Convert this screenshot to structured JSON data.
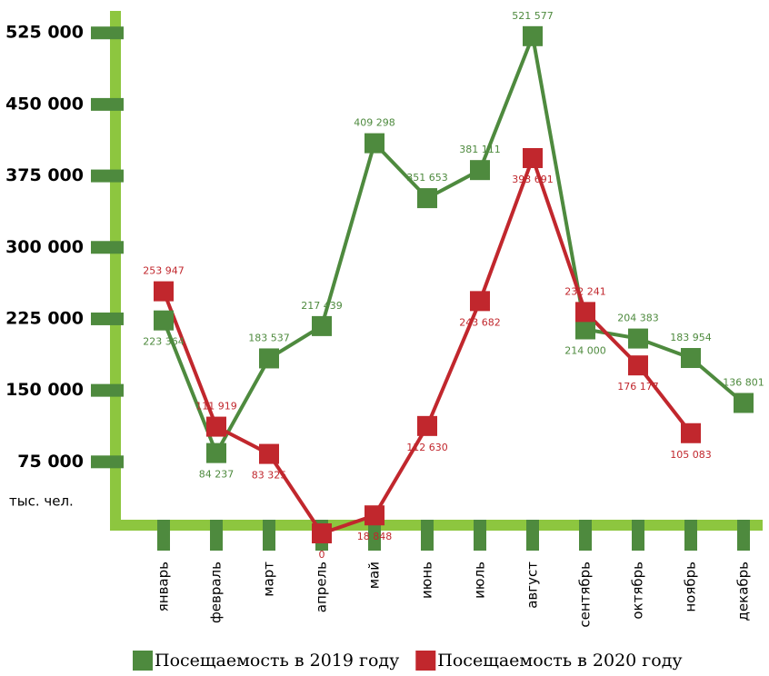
{
  "chart_data": {
    "type": "line",
    "y_label": "тыс. чел.",
    "categories": [
      "январь",
      "февраль",
      "март",
      "апрель",
      "май",
      "июнь",
      "июль",
      "август",
      "сентябрь",
      "октябрь",
      "ноябрь",
      "декабрь"
    ],
    "series": [
      {
        "name": "Посещаемость в 2019 году",
        "color": "#4e8a3e",
        "values": [
          223364,
          84237,
          183537,
          217439,
          409298,
          351653,
          381111,
          521577,
          214000,
          204383,
          183954,
          136801
        ],
        "value_labels": [
          "223 364",
          "84 237",
          "183 537",
          "217 439",
          "409 298",
          "351 653",
          "381 111",
          "521 577",
          "214 000",
          "204 383",
          "183 954",
          "136 801"
        ]
      },
      {
        "name": "Посещаемость в 2020 году",
        "color": "#c1272d",
        "values": [
          253947,
          111919,
          83325,
          0,
          18848,
          112630,
          243682,
          393691,
          232241,
          176177,
          105083,
          null
        ],
        "value_labels": [
          "253 947",
          "111 919",
          "83 325",
          "0",
          "18 848",
          "112 630",
          "243 682",
          "393 691",
          "232 241",
          "176 177",
          "105 083",
          null
        ]
      }
    ],
    "ylim": [
      0,
      550000
    ],
    "yticks": [
      {
        "value": 75000,
        "label": "75 000"
      },
      {
        "value": 150000,
        "label": "150 000"
      },
      {
        "value": 225000,
        "label": "225 000"
      },
      {
        "value": 300000,
        "label": "300 000"
      },
      {
        "value": 375000,
        "label": "375 000"
      },
      {
        "value": 450000,
        "label": "450 000"
      },
      {
        "value": 525000,
        "label": "525 000"
      }
    ],
    "axis_color": "#8dc63f",
    "tick_color": "#4e8a3e"
  }
}
